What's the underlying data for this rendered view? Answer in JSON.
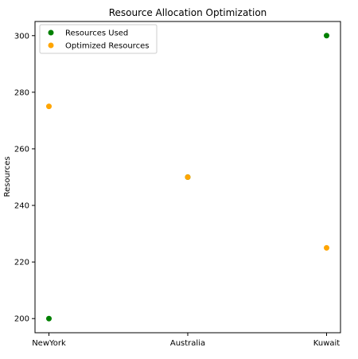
{
  "chart_data": {
    "type": "scatter",
    "title": "Resource Allocation Optimization",
    "xlabel": "",
    "ylabel": "Resources",
    "categories": [
      "NewYork",
      "Australia",
      "Kuwait"
    ],
    "ylim": [
      195,
      305
    ],
    "yticks": [
      200,
      220,
      240,
      260,
      280,
      300
    ],
    "grid": false,
    "legend_position": "top-left",
    "series": [
      {
        "name": "Resources Used",
        "color": "#008000",
        "values": [
          200,
          250,
          300
        ]
      },
      {
        "name": "Optimized Resources",
        "color": "#FFA500",
        "values": [
          275,
          250,
          225
        ]
      }
    ]
  }
}
